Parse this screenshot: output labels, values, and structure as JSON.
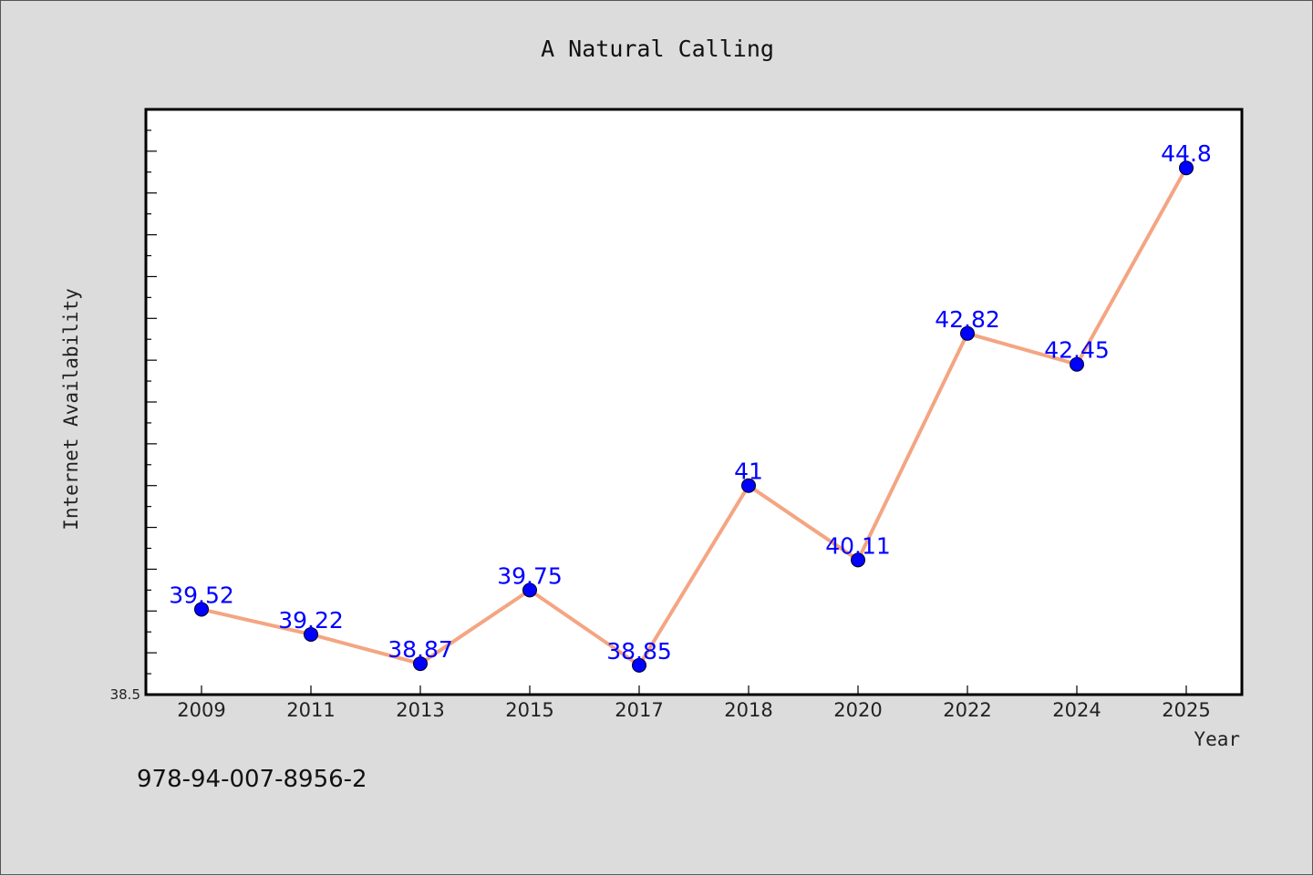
{
  "footer_text": "978-94-007-8956-2",
  "colors": {
    "background": "#dcdcdc",
    "plot_background": "#ffffff",
    "line": "#f4a582",
    "marker": "#0000ff",
    "data_label": "#0000ff"
  },
  "chart_data": {
    "type": "line",
    "title": "A Natural Calling",
    "xlabel": "Year",
    "ylabel": "Internet Availability",
    "categories": [
      "2009",
      "2011",
      "2013",
      "2015",
      "2017",
      "2018",
      "2020",
      "2022",
      "2024",
      "2025"
    ],
    "series": [
      {
        "values": [
          39.52,
          39.22,
          38.87,
          39.75,
          38.85,
          41,
          40.11,
          42.82,
          42.45,
          44.8
        ],
        "labels": [
          "39.52",
          "39.22",
          "38.87",
          "39.75",
          "38.85",
          "41",
          "40.11",
          "42.82",
          "42.45",
          "44.8"
        ]
      }
    ],
    "ylim": [
      38.5,
      45.5
    ],
    "y_tick_labels": [
      "38.5"
    ],
    "grid": false,
    "legend": "none"
  }
}
